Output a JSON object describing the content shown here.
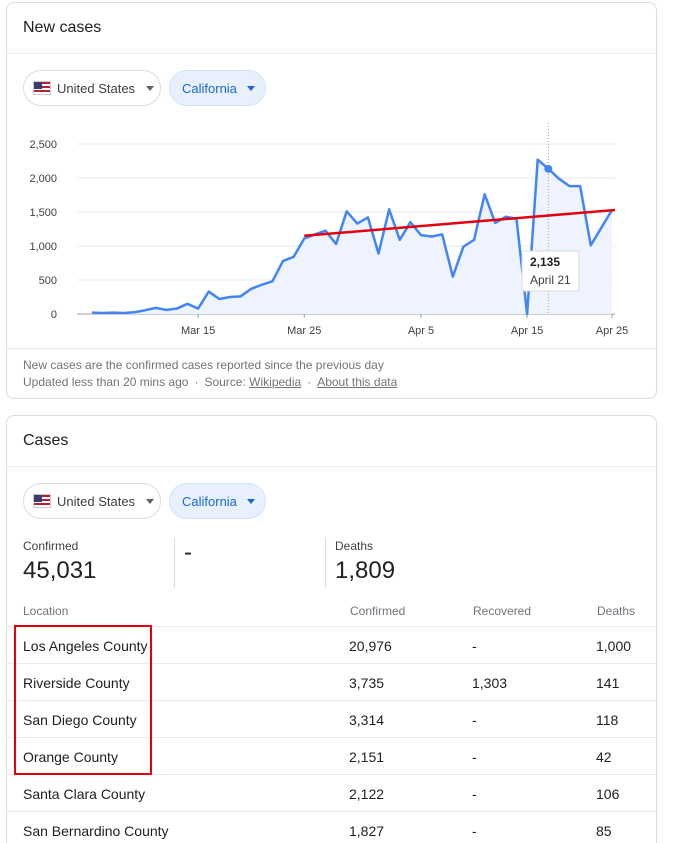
{
  "new_cases": {
    "title": "New cases",
    "country": "United States",
    "state": "California",
    "footnote_line1": "New cases are the confirmed cases reported since the previous day",
    "updated": "Updated less than 20 mins ago",
    "source_label": "Source:",
    "source_link": "Wikipedia",
    "about_link": "About this data",
    "tooltip": {
      "value": "2,135",
      "date": "April 21"
    }
  },
  "chart_data": {
    "type": "line",
    "y_ticks": [
      "2,500",
      "2,000",
      "1,500",
      "1,000",
      "500",
      "0"
    ],
    "x_ticks": [
      "Mar 15",
      "Mar 25",
      "Apr 5",
      "Apr 15",
      "Apr 25"
    ],
    "ylim": [
      0,
      2500
    ],
    "series": [
      {
        "values": [
          20,
          15,
          20,
          15,
          25,
          55,
          90,
          60,
          80,
          150,
          80,
          330,
          220,
          250,
          260,
          370,
          430,
          480,
          780,
          840,
          1110,
          1170,
          1225,
          1030,
          1510,
          1330,
          1420,
          890,
          1540,
          1090,
          1350,
          1160,
          1140,
          1170,
          550,
          990,
          1090,
          1760,
          1340,
          1430,
          1400,
          0,
          2270,
          2135,
          1990,
          1880,
          1880,
          1010,
          1270,
          1530
        ]
      }
    ],
    "trend_line": [
      1150,
      1530
    ],
    "colors": {
      "series": "#4285f4",
      "trend": "#e3000f",
      "area": "#eef3fd"
    }
  },
  "cases": {
    "title": "Cases",
    "country": "United States",
    "state": "California",
    "confirmed_label": "Confirmed",
    "confirmed_value": "45,031",
    "recovered_value": "-",
    "deaths_label": "Deaths",
    "deaths_value": "1,809",
    "headers": {
      "location": "Location",
      "confirmed": "Confirmed",
      "recovered": "Recovered",
      "deaths": "Deaths"
    },
    "rows": [
      {
        "location": "Los Angeles County",
        "confirmed": "20,976",
        "recovered": "-",
        "deaths": "1,000"
      },
      {
        "location": "Riverside County",
        "confirmed": "3,735",
        "recovered": "1,303",
        "deaths": "141"
      },
      {
        "location": "San Diego County",
        "confirmed": "3,314",
        "recovered": "-",
        "deaths": "118"
      },
      {
        "location": "Orange County",
        "confirmed": "2,151",
        "recovered": "-",
        "deaths": "42"
      },
      {
        "location": "Santa Clara County",
        "confirmed": "2,122",
        "recovered": "-",
        "deaths": "106"
      },
      {
        "location": "San Bernardino County",
        "confirmed": "1,827",
        "recovered": "-",
        "deaths": "85"
      }
    ],
    "highlight_color": "#e3000f"
  }
}
